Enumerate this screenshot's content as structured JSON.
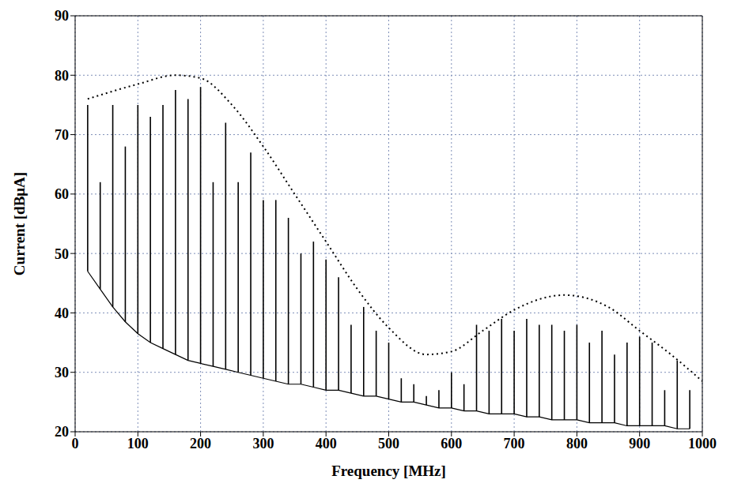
{
  "chart_data": {
    "type": "line",
    "x_label": "Frequency [MHz]",
    "y_label": "Current [dBμA]",
    "xlim": [
      0,
      1000
    ],
    "xticks": [
      0,
      100,
      200,
      300,
      400,
      500,
      600,
      700,
      800,
      900,
      1000
    ],
    "ylim": [
      20,
      90
    ],
    "yticks": [
      20,
      30,
      40,
      50,
      60,
      70,
      80,
      90
    ],
    "grid": true,
    "series": [
      {
        "type": "stem",
        "color": "#000000",
        "line_style": "solid",
        "x": [
          20,
          40,
          60,
          80,
          100,
          120,
          140,
          160,
          180,
          200,
          220,
          240,
          260,
          280,
          300,
          320,
          340,
          360,
          380,
          400,
          420,
          440,
          460,
          480,
          500,
          520,
          540,
          560,
          580,
          600,
          620,
          640,
          660,
          680,
          700,
          720,
          740,
          760,
          780,
          800,
          820,
          840,
          860,
          880,
          900,
          920,
          940,
          960,
          980
        ],
        "values": [
          75,
          62,
          75,
          68,
          75,
          73,
          75,
          77.5,
          76,
          78,
          62,
          72,
          62,
          67,
          59,
          59,
          56,
          50,
          52,
          49,
          46,
          38,
          41,
          37,
          35,
          29,
          28,
          26,
          27,
          30,
          28,
          38,
          37,
          39,
          37,
          39,
          38,
          38,
          37,
          38,
          35,
          37,
          33,
          35,
          36,
          35,
          27,
          32,
          27
        ],
        "floor": [
          47,
          44,
          41,
          38.5,
          36.5,
          35,
          34,
          33,
          32,
          31.5,
          31,
          30.5,
          30,
          29.5,
          29,
          28.5,
          28,
          28,
          27.5,
          27,
          27,
          26.5,
          26,
          26,
          25.5,
          25,
          25,
          24.5,
          24,
          24,
          23.5,
          23.5,
          23,
          23,
          23,
          22.5,
          22.5,
          22,
          22,
          22,
          21.5,
          21.5,
          21.5,
          21,
          21,
          21,
          21,
          20.5,
          20.5
        ]
      },
      {
        "type": "line",
        "color": "#000000",
        "line_style": "dotted",
        "x": [
          20,
          100,
          160,
          200,
          250,
          300,
          350,
          400,
          450,
          500,
          560,
          600,
          650,
          700,
          780,
          850,
          900,
          950,
          1000
        ],
        "values": [
          76,
          78.5,
          80,
          79.5,
          75,
          68,
          60,
          52,
          44,
          37.5,
          33,
          33.5,
          37,
          40.5,
          43,
          41,
          37,
          33,
          28.5
        ]
      }
    ]
  }
}
